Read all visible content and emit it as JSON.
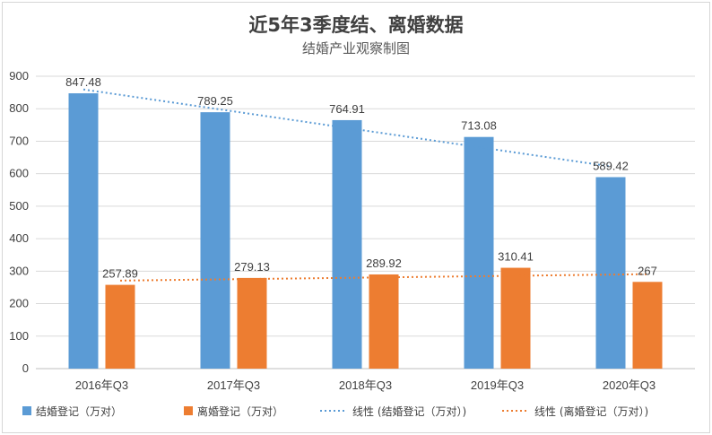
{
  "chart_data": {
    "type": "bar",
    "title": "近5年3季度结、离婚数据",
    "subtitle": "结婚产业观察制图",
    "categories": [
      "2016年Q3",
      "2017年Q3",
      "2018年Q3",
      "2019年Q3",
      "2020年Q3"
    ],
    "series": [
      {
        "name": "结婚登记（万对）",
        "values": [
          847.48,
          789.25,
          764.91,
          713.08,
          589.42
        ],
        "color": "#5b9bd5"
      },
      {
        "name": "离婚登记（万对）",
        "values": [
          257.89,
          279.13,
          289.92,
          310.41,
          267
        ],
        "color": "#ed7d31"
      }
    ],
    "trendlines": [
      {
        "name": "线性 (结婚登记（万对）)",
        "series_index": 0,
        "style": "dotted",
        "color": "#5b9bd5"
      },
      {
        "name": "线性 (离婚登记（万对）)",
        "series_index": 1,
        "style": "dotted",
        "color": "#ed7d31"
      }
    ],
    "ylim": [
      0,
      900
    ],
    "yticks": [
      0,
      100,
      200,
      300,
      400,
      500,
      600,
      700,
      800,
      900
    ],
    "grid": true,
    "legend": "bottom",
    "data_labels": true
  }
}
